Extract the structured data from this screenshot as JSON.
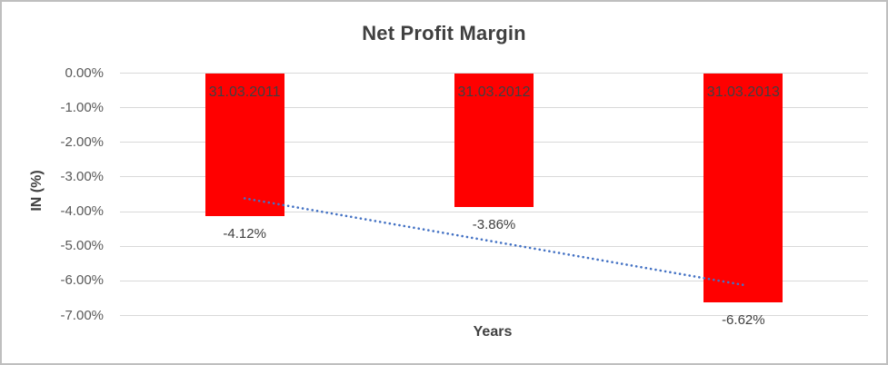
{
  "chart_data": {
    "type": "bar",
    "title": "Net Profit Margin",
    "categories": [
      "31.03.2011",
      "31.03.2012",
      "31.03.2013"
    ],
    "values": [
      -4.12,
      -3.86,
      -6.62
    ],
    "data_labels": [
      "-4.12%",
      "-3.86%",
      "-6.62%"
    ],
    "xlabel": "Years",
    "ylabel": "IN (%)",
    "ylim": [
      -7,
      0
    ],
    "y_ticks": [
      "0.00%",
      "-1.00%",
      "-2.00%",
      "-3.00%",
      "-4.00%",
      "-5.00%",
      "-6.00%",
      "-7.00%"
    ],
    "grid": true,
    "legend": "none",
    "bar_color": "#FF0000",
    "gridline_color": "#D9D9D9",
    "title_color": "#404040",
    "tick_label_color": "#595959",
    "data_label_color": "#404040",
    "trendline": {
      "type": "linear",
      "style": "dotted",
      "color": "#4472C4",
      "start_value": -3.62,
      "end_value": -6.12
    }
  }
}
